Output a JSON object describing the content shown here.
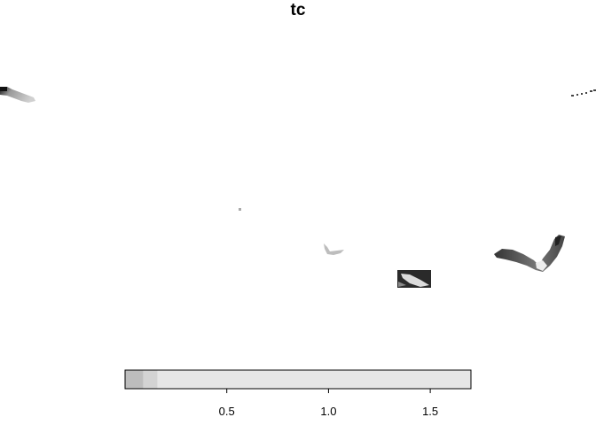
{
  "map": {
    "title": "tc",
    "layer": "tc",
    "style": "greyscale raster"
  },
  "legend": {
    "range": [
      0,
      1.7
    ],
    "ticks": [
      {
        "value": 0.5,
        "label": "0.5"
      },
      {
        "value": 1.0,
        "label": "1.0"
      },
      {
        "value": 1.5,
        "label": "1.5"
      }
    ],
    "bins": [
      {
        "from": 0.0,
        "to": 0.09,
        "color": "#bdbdbd"
      },
      {
        "from": 0.09,
        "to": 0.16,
        "color": "#d3d3d3"
      },
      {
        "from": 0.16,
        "to": 1.7,
        "color": "#e6e6e6"
      }
    ]
  }
}
